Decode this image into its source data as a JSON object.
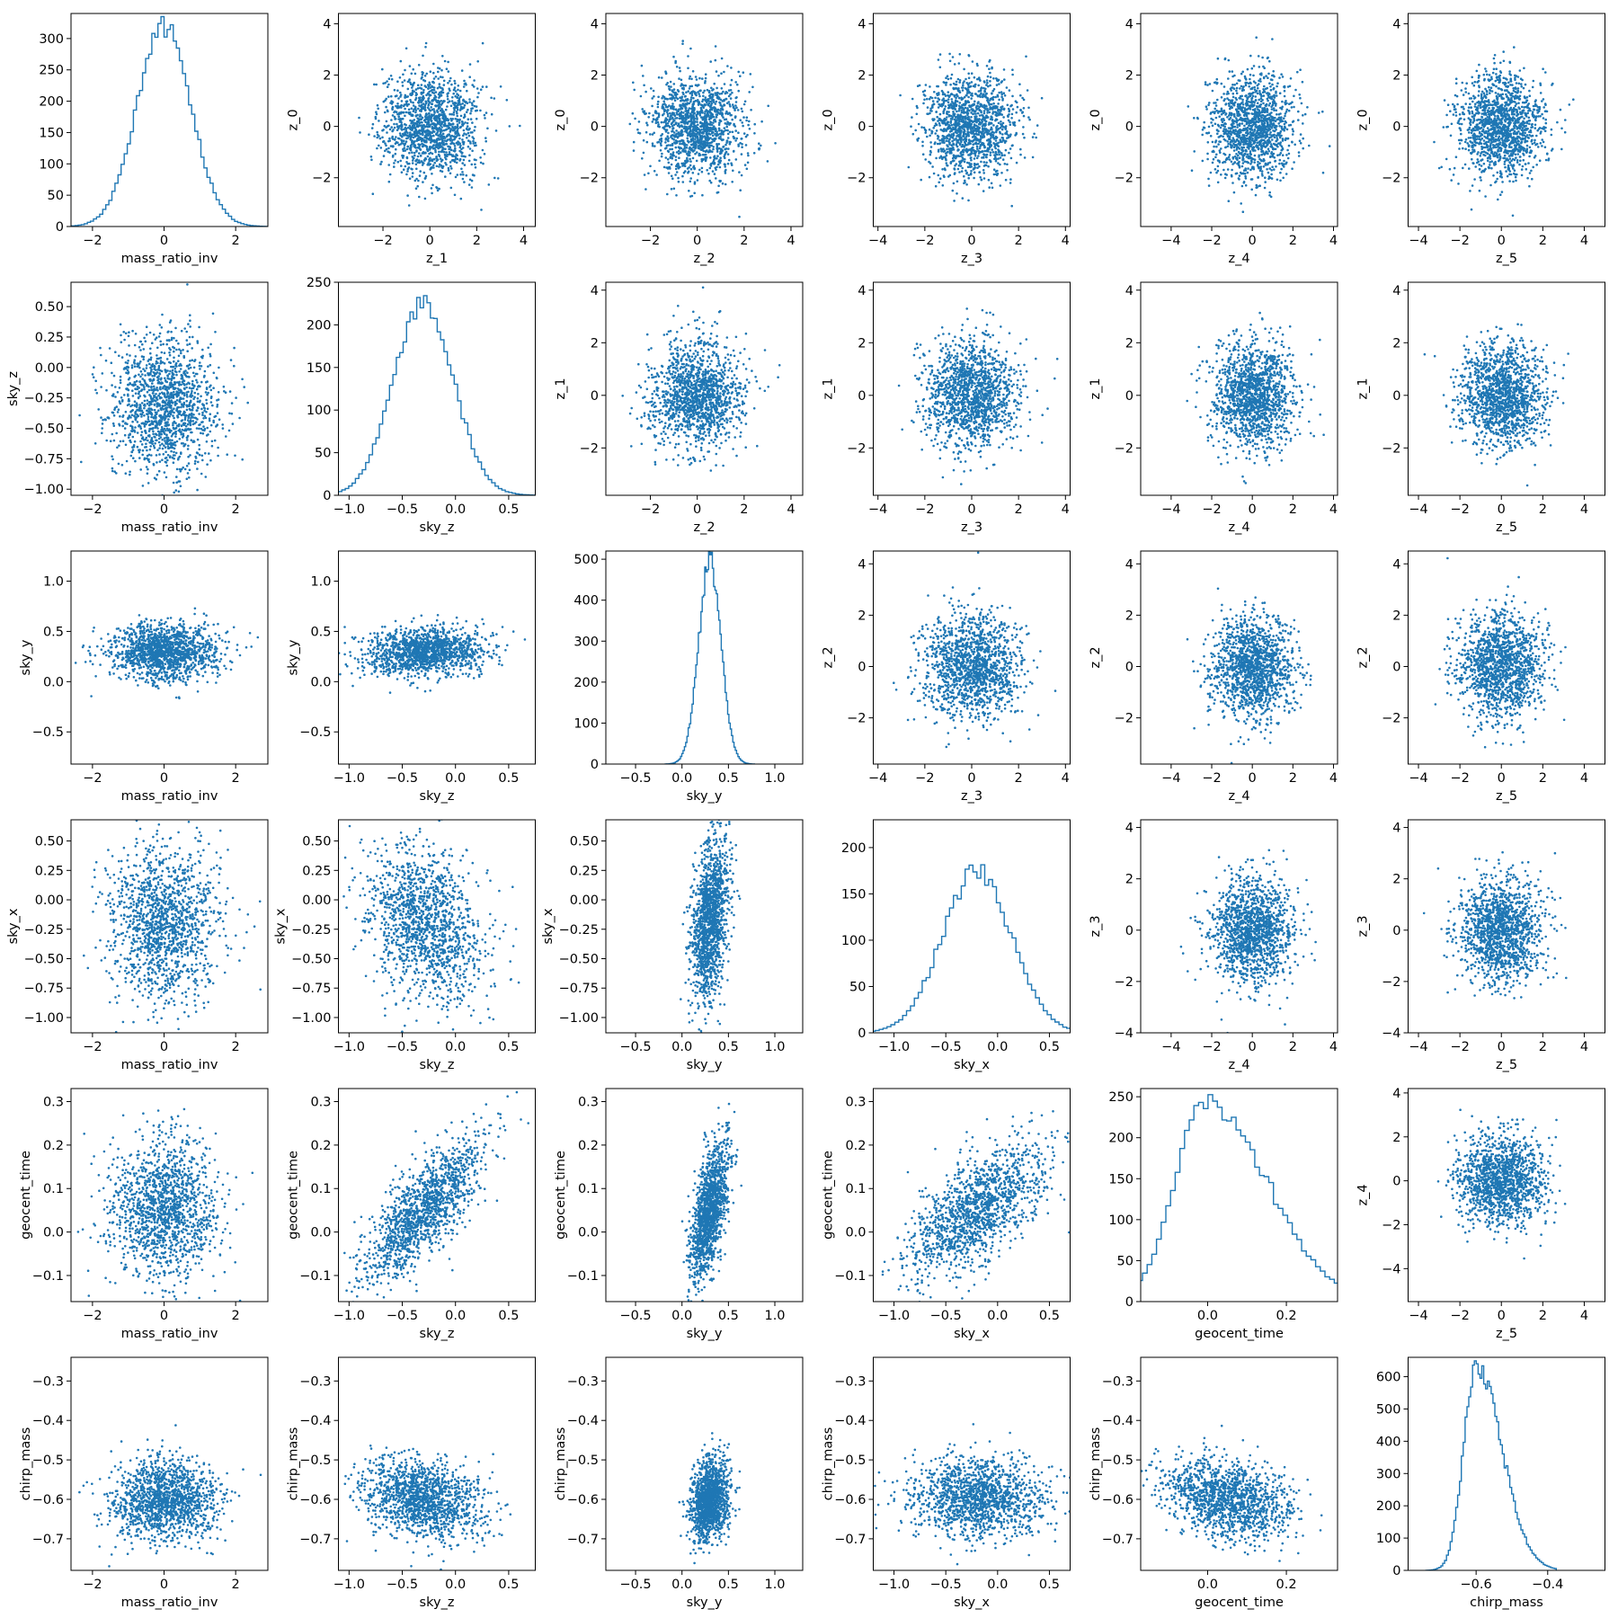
{
  "colors": {
    "series": "#1f77b4",
    "axis": "#000000",
    "background": "#ffffff"
  },
  "chart_data": [
    {
      "row": 0,
      "col": 0,
      "type": "histogram",
      "xlabel": "mass_ratio_inv",
      "ylabel": "",
      "xlim": [
        -2.6,
        2.9
      ],
      "ylim": [
        0,
        340
      ],
      "xticks": [
        -2,
        0,
        2
      ],
      "yticks": [
        0,
        50,
        100,
        150,
        200,
        250,
        300
      ],
      "dist": {
        "center": 0,
        "spread": 0.75,
        "peak": 320,
        "skew": 0
      }
    },
    {
      "row": 0,
      "col": 1,
      "type": "scatter",
      "xlabel": "z_1",
      "ylabel": "z_0",
      "xlim": [
        -3.9,
        4.5
      ],
      "ylim": [
        -3.9,
        4.4
      ],
      "xticks": [
        -2,
        0,
        2,
        4
      ],
      "yticks": [
        -2,
        0,
        2,
        4
      ],
      "dist": {
        "mx": 0,
        "sx": 1,
        "my": 0,
        "sy": 1,
        "rho": 0
      }
    },
    {
      "row": 0,
      "col": 2,
      "type": "scatter",
      "xlabel": "z_2",
      "ylabel": "z_0",
      "xlim": [
        -3.9,
        4.5
      ],
      "ylim": [
        -3.9,
        4.4
      ],
      "xticks": [
        -2,
        0,
        2,
        4
      ],
      "yticks": [
        -2,
        0,
        2,
        4
      ],
      "dist": {
        "mx": 0,
        "sx": 1,
        "my": 0,
        "sy": 1,
        "rho": 0
      }
    },
    {
      "row": 0,
      "col": 3,
      "type": "scatter",
      "xlabel": "z_3",
      "ylabel": "z_0",
      "xlim": [
        -4.2,
        4.2
      ],
      "ylim": [
        -3.9,
        4.4
      ],
      "xticks": [
        -4,
        -2,
        0,
        2,
        4
      ],
      "yticks": [
        -2,
        0,
        2,
        4
      ],
      "dist": {
        "mx": 0,
        "sx": 1,
        "my": 0,
        "sy": 1,
        "rho": 0
      }
    },
    {
      "row": 0,
      "col": 4,
      "type": "scatter",
      "xlabel": "z_4",
      "ylabel": "z_0",
      "xlim": [
        -5.5,
        4.2
      ],
      "ylim": [
        -3.9,
        4.4
      ],
      "xticks": [
        -4,
        -2,
        0,
        2,
        4
      ],
      "yticks": [
        -2,
        0,
        2,
        4
      ],
      "dist": {
        "mx": 0,
        "sx": 1,
        "my": 0,
        "sy": 1,
        "rho": 0
      }
    },
    {
      "row": 0,
      "col": 5,
      "type": "scatter",
      "xlabel": "z_5",
      "ylabel": "z_0",
      "xlim": [
        -4.5,
        5.0
      ],
      "ylim": [
        -3.9,
        4.4
      ],
      "xticks": [
        -4,
        -2,
        0,
        2,
        4
      ],
      "yticks": [
        -2,
        0,
        2,
        4
      ],
      "dist": {
        "mx": 0,
        "sx": 1,
        "my": 0,
        "sy": 1,
        "rho": 0
      }
    },
    {
      "row": 1,
      "col": 0,
      "type": "scatter",
      "xlabel": "mass_ratio_inv",
      "ylabel": "sky_z",
      "xlim": [
        -2.6,
        2.9
      ],
      "ylim": [
        -1.05,
        0.7
      ],
      "xticks": [
        -2,
        0,
        2
      ],
      "yticks": [
        -1.0,
        -0.75,
        -0.5,
        -0.25,
        0.0,
        0.25,
        0.5
      ],
      "ytickfmt": 2,
      "dist": {
        "mx": 0,
        "sx": 0.75,
        "my": -0.3,
        "sy": 0.28,
        "rho": 0
      }
    },
    {
      "row": 1,
      "col": 1,
      "type": "histogram",
      "xlabel": "sky_z",
      "ylabel": "",
      "xlim": [
        -1.1,
        0.75
      ],
      "ylim": [
        0,
        250
      ],
      "xticks": [
        -1.0,
        -0.5,
        0.0,
        0.5
      ],
      "xtickfmt": 1,
      "yticks": [
        0,
        50,
        100,
        150,
        200,
        250
      ],
      "dist": {
        "center": -0.3,
        "spread": 0.28,
        "peak": 225,
        "skew": 0
      }
    },
    {
      "row": 1,
      "col": 2,
      "type": "scatter",
      "xlabel": "z_2",
      "ylabel": "z_1",
      "xlim": [
        -3.9,
        4.5
      ],
      "ylim": [
        -3.8,
        4.3
      ],
      "xticks": [
        -2,
        0,
        2,
        4
      ],
      "yticks": [
        -2,
        0,
        2,
        4
      ],
      "dist": {
        "mx": 0,
        "sx": 1,
        "my": 0,
        "sy": 1,
        "rho": 0
      }
    },
    {
      "row": 1,
      "col": 3,
      "type": "scatter",
      "xlabel": "z_3",
      "ylabel": "z_1",
      "xlim": [
        -4.2,
        4.2
      ],
      "ylim": [
        -3.8,
        4.3
      ],
      "xticks": [
        -4,
        -2,
        0,
        2,
        4
      ],
      "yticks": [
        -2,
        0,
        2,
        4
      ],
      "dist": {
        "mx": 0,
        "sx": 1,
        "my": 0,
        "sy": 1,
        "rho": 0
      }
    },
    {
      "row": 1,
      "col": 4,
      "type": "scatter",
      "xlabel": "z_4",
      "ylabel": "z_1",
      "xlim": [
        -5.5,
        4.2
      ],
      "ylim": [
        -3.8,
        4.3
      ],
      "xticks": [
        -4,
        -2,
        0,
        2,
        4
      ],
      "yticks": [
        -2,
        0,
        2,
        4
      ],
      "dist": {
        "mx": 0,
        "sx": 1,
        "my": 0,
        "sy": 1,
        "rho": 0
      }
    },
    {
      "row": 1,
      "col": 5,
      "type": "scatter",
      "xlabel": "z_5",
      "ylabel": "z_1",
      "xlim": [
        -4.5,
        5.0
      ],
      "ylim": [
        -3.8,
        4.3
      ],
      "xticks": [
        -4,
        -2,
        0,
        2,
        4
      ],
      "yticks": [
        -2,
        0,
        2,
        4
      ],
      "dist": {
        "mx": 0,
        "sx": 1,
        "my": 0,
        "sy": 1,
        "rho": 0
      }
    },
    {
      "row": 2,
      "col": 0,
      "type": "scatter",
      "xlabel": "mass_ratio_inv",
      "ylabel": "sky_y",
      "xlim": [
        -2.6,
        2.9
      ],
      "ylim": [
        -0.82,
        1.3
      ],
      "xticks": [
        -2,
        0,
        2
      ],
      "yticks": [
        -0.5,
        0.0,
        0.5,
        1.0
      ],
      "ytickfmt": 1,
      "dist": {
        "mx": 0,
        "sx": 0.75,
        "my": 0.3,
        "sy": 0.14,
        "rho": 0
      }
    },
    {
      "row": 2,
      "col": 1,
      "type": "scatter",
      "xlabel": "sky_z",
      "ylabel": "sky_y",
      "xlim": [
        -1.1,
        0.75
      ],
      "ylim": [
        -0.82,
        1.3
      ],
      "xticks": [
        -1.0,
        -0.5,
        0.0,
        0.5
      ],
      "xtickfmt": 1,
      "yticks": [
        -0.5,
        0.0,
        0.5,
        1.0
      ],
      "ytickfmt": 1,
      "dist": {
        "mx": -0.3,
        "sx": 0.28,
        "my": 0.3,
        "sy": 0.12,
        "rho": 0.1
      }
    },
    {
      "row": 2,
      "col": 2,
      "type": "histogram",
      "xlabel": "sky_y",
      "ylabel": "",
      "xlim": [
        -0.82,
        1.3
      ],
      "ylim": [
        0,
        520
      ],
      "xticks": [
        -0.5,
        0.0,
        0.5,
        1.0
      ],
      "xtickfmt": 1,
      "yticks": [
        0,
        100,
        200,
        300,
        400,
        500
      ],
      "dist": {
        "center": 0.3,
        "spread": 0.12,
        "peak": 495,
        "skew": 0
      }
    },
    {
      "row": 2,
      "col": 3,
      "type": "scatter",
      "xlabel": "z_3",
      "ylabel": "z_2",
      "xlim": [
        -4.2,
        4.2
      ],
      "ylim": [
        -3.8,
        4.5
      ],
      "xticks": [
        -4,
        -2,
        0,
        2,
        4
      ],
      "yticks": [
        -2,
        0,
        2,
        4
      ],
      "dist": {
        "mx": 0,
        "sx": 1,
        "my": 0,
        "sy": 1,
        "rho": 0
      }
    },
    {
      "row": 2,
      "col": 4,
      "type": "scatter",
      "xlabel": "z_4",
      "ylabel": "z_2",
      "xlim": [
        -5.5,
        4.2
      ],
      "ylim": [
        -3.8,
        4.5
      ],
      "xticks": [
        -4,
        -2,
        0,
        2,
        4
      ],
      "yticks": [
        -2,
        0,
        2,
        4
      ],
      "dist": {
        "mx": 0,
        "sx": 1,
        "my": 0,
        "sy": 1,
        "rho": 0
      }
    },
    {
      "row": 2,
      "col": 5,
      "type": "scatter",
      "xlabel": "z_5",
      "ylabel": "z_2",
      "xlim": [
        -4.5,
        5.0
      ],
      "ylim": [
        -3.8,
        4.5
      ],
      "xticks": [
        -4,
        -2,
        0,
        2,
        4
      ],
      "yticks": [
        -2,
        0,
        2,
        4
      ],
      "dist": {
        "mx": 0,
        "sx": 1,
        "my": 0,
        "sy": 1,
        "rho": 0
      }
    },
    {
      "row": 3,
      "col": 0,
      "type": "scatter",
      "xlabel": "mass_ratio_inv",
      "ylabel": "sky_x",
      "xlim": [
        -2.6,
        2.9
      ],
      "ylim": [
        -1.13,
        0.68
      ],
      "xticks": [
        -2,
        0,
        2
      ],
      "yticks": [
        -1.0,
        -0.75,
        -0.5,
        -0.25,
        0.0,
        0.25,
        0.5
      ],
      "ytickfmt": 2,
      "dist": {
        "mx": 0,
        "sx": 0.75,
        "my": -0.2,
        "sy": 0.33,
        "rho": 0
      }
    },
    {
      "row": 3,
      "col": 1,
      "type": "scatter",
      "xlabel": "sky_z",
      "ylabel": "sky_x",
      "xlim": [
        -1.1,
        0.75
      ],
      "ylim": [
        -1.13,
        0.68
      ],
      "xticks": [
        -1.0,
        -0.5,
        0.0,
        0.5
      ],
      "xtickfmt": 1,
      "yticks": [
        -1.0,
        -0.75,
        -0.5,
        -0.25,
        0.0,
        0.25,
        0.5
      ],
      "ytickfmt": 2,
      "dist": {
        "mx": -0.3,
        "sx": 0.28,
        "my": -0.2,
        "sy": 0.33,
        "rho": -0.3
      }
    },
    {
      "row": 3,
      "col": 2,
      "type": "scatter",
      "xlabel": "sky_y",
      "ylabel": "sky_x",
      "xlim": [
        -0.82,
        1.3
      ],
      "ylim": [
        -1.13,
        0.68
      ],
      "xticks": [
        -0.5,
        0.0,
        0.5,
        1.0
      ],
      "xtickfmt": 1,
      "yticks": [
        -1.0,
        -0.75,
        -0.5,
        -0.25,
        0.0,
        0.25,
        0.5
      ],
      "ytickfmt": 2,
      "dist": {
        "mx": 0.3,
        "sx": 0.1,
        "my": -0.2,
        "sy": 0.33,
        "rho": 0.3
      }
    },
    {
      "row": 3,
      "col": 3,
      "type": "histogram",
      "xlabel": "sky_x",
      "ylabel": "",
      "xlim": [
        -1.2,
        0.7
      ],
      "ylim": [
        0,
        230
      ],
      "xticks": [
        -1.0,
        -0.5,
        0.0,
        0.5
      ],
      "xtickfmt": 1,
      "yticks": [
        0,
        50,
        100,
        150,
        200
      ],
      "dist": {
        "center": -0.2,
        "spread": 0.33,
        "peak": 175,
        "skew": 0
      }
    },
    {
      "row": 3,
      "col": 4,
      "type": "scatter",
      "xlabel": "z_4",
      "ylabel": "z_3",
      "xlim": [
        -5.5,
        4.2
      ],
      "ylim": [
        -4.0,
        4.3
      ],
      "xticks": [
        -4,
        -2,
        0,
        2,
        4
      ],
      "yticks": [
        -4,
        -2,
        0,
        2,
        4
      ],
      "dist": {
        "mx": 0,
        "sx": 1,
        "my": 0,
        "sy": 1,
        "rho": 0
      }
    },
    {
      "row": 3,
      "col": 5,
      "type": "scatter",
      "xlabel": "z_5",
      "ylabel": "z_3",
      "xlim": [
        -4.5,
        5.0
      ],
      "ylim": [
        -4.0,
        4.3
      ],
      "xticks": [
        -4,
        -2,
        0,
        2,
        4
      ],
      "yticks": [
        -4,
        -2,
        0,
        2,
        4
      ],
      "dist": {
        "mx": 0,
        "sx": 1,
        "my": 0,
        "sy": 1,
        "rho": 0
      }
    },
    {
      "row": 4,
      "col": 0,
      "type": "scatter",
      "xlabel": "mass_ratio_inv",
      "ylabel": "geocent_time",
      "xlim": [
        -2.6,
        2.9
      ],
      "ylim": [
        -0.16,
        0.33
      ],
      "xticks": [
        -2,
        0,
        2
      ],
      "yticks": [
        -0.1,
        0.0,
        0.1,
        0.2,
        0.3
      ],
      "ytickfmt": 1,
      "dist": {
        "mx": 0,
        "sx": 0.75,
        "my": 0.05,
        "sy": 0.08,
        "rho": 0
      }
    },
    {
      "row": 4,
      "col": 1,
      "type": "scatter",
      "xlabel": "sky_z",
      "ylabel": "geocent_time",
      "xlim": [
        -1.1,
        0.75
      ],
      "ylim": [
        -0.16,
        0.33
      ],
      "xticks": [
        -1.0,
        -0.5,
        0.0,
        0.5
      ],
      "xtickfmt": 1,
      "yticks": [
        -0.1,
        0.0,
        0.1,
        0.2,
        0.3
      ],
      "ytickfmt": 1,
      "dist": {
        "mx": -0.3,
        "sx": 0.28,
        "my": 0.05,
        "sy": 0.08,
        "rho": 0.75
      }
    },
    {
      "row": 4,
      "col": 2,
      "type": "scatter",
      "xlabel": "sky_y",
      "ylabel": "geocent_time",
      "xlim": [
        -0.82,
        1.3
      ],
      "ylim": [
        -0.16,
        0.33
      ],
      "xticks": [
        -0.5,
        0.0,
        0.5,
        1.0
      ],
      "xtickfmt": 1,
      "yticks": [
        -0.1,
        0.0,
        0.1,
        0.2,
        0.3
      ],
      "ytickfmt": 1,
      "dist": {
        "mx": 0.3,
        "sx": 0.1,
        "my": 0.05,
        "sy": 0.08,
        "rho": 0.6
      }
    },
    {
      "row": 4,
      "col": 3,
      "type": "scatter",
      "xlabel": "sky_x",
      "ylabel": "geocent_time",
      "xlim": [
        -1.2,
        0.7
      ],
      "ylim": [
        -0.16,
        0.33
      ],
      "xticks": [
        -1.0,
        -0.5,
        0.0,
        0.5
      ],
      "xtickfmt": 1,
      "yticks": [
        -0.1,
        0.0,
        0.1,
        0.2,
        0.3
      ],
      "ytickfmt": 1,
      "dist": {
        "mx": -0.2,
        "sx": 0.33,
        "my": 0.05,
        "sy": 0.08,
        "rho": 0.65
      }
    },
    {
      "row": 4,
      "col": 4,
      "type": "histogram",
      "xlabel": "geocent_time",
      "ylabel": "",
      "xlim": [
        -0.17,
        0.33
      ],
      "ylim": [
        0,
        260
      ],
      "xticks": [
        0.0,
        0.2
      ],
      "xtickfmt": 1,
      "yticks": [
        0,
        50,
        100,
        150,
        200,
        250
      ],
      "dist": {
        "center": 0.0,
        "spread": 0.08,
        "peak": 245,
        "skew": 2.5
      }
    },
    {
      "row": 4,
      "col": 5,
      "type": "scatter",
      "xlabel": "z_5",
      "ylabel": "z_4",
      "xlim": [
        -4.5,
        5.0
      ],
      "ylim": [
        -5.5,
        4.2
      ],
      "xticks": [
        -4,
        -2,
        0,
        2,
        4
      ],
      "yticks": [
        -4,
        -2,
        0,
        2,
        4
      ],
      "dist": {
        "mx": 0,
        "sx": 1,
        "my": 0,
        "sy": 1,
        "rho": 0
      }
    },
    {
      "row": 5,
      "col": 0,
      "type": "scatter",
      "xlabel": "mass_ratio_inv",
      "ylabel": "chirp_mass",
      "xlim": [
        -2.6,
        2.9
      ],
      "ylim": [
        -0.78,
        -0.24
      ],
      "xticks": [
        -2,
        0,
        2
      ],
      "yticks": [
        -0.7,
        -0.6,
        -0.5,
        -0.4,
        -0.3
      ],
      "ytickfmt": 1,
      "dist": {
        "mx": 0,
        "sx": 0.75,
        "my": -0.6,
        "sy": 0.05,
        "rho": 0
      }
    },
    {
      "row": 5,
      "col": 1,
      "type": "scatter",
      "xlabel": "sky_z",
      "ylabel": "chirp_mass",
      "xlim": [
        -1.1,
        0.75
      ],
      "ylim": [
        -0.78,
        -0.24
      ],
      "xticks": [
        -1.0,
        -0.5,
        0.0,
        0.5
      ],
      "xtickfmt": 1,
      "yticks": [
        -0.7,
        -0.6,
        -0.5,
        -0.4,
        -0.3
      ],
      "ytickfmt": 1,
      "dist": {
        "mx": -0.3,
        "sx": 0.28,
        "my": -0.6,
        "sy": 0.05,
        "rho": -0.25
      }
    },
    {
      "row": 5,
      "col": 2,
      "type": "scatter",
      "xlabel": "sky_y",
      "ylabel": "chirp_mass",
      "xlim": [
        -0.82,
        1.3
      ],
      "ylim": [
        -0.78,
        -0.24
      ],
      "xticks": [
        -0.5,
        0.0,
        0.5,
        1.0
      ],
      "xtickfmt": 1,
      "yticks": [
        -0.7,
        -0.6,
        -0.5,
        -0.4,
        -0.3
      ],
      "ytickfmt": 1,
      "dist": {
        "mx": 0.3,
        "sx": 0.1,
        "my": -0.6,
        "sy": 0.05,
        "rho": 0.2
      }
    },
    {
      "row": 5,
      "col": 3,
      "type": "scatter",
      "xlabel": "sky_x",
      "ylabel": "chirp_mass",
      "xlim": [
        -1.2,
        0.7
      ],
      "ylim": [
        -0.78,
        -0.24
      ],
      "xticks": [
        -1.0,
        -0.5,
        0.0,
        0.5
      ],
      "xtickfmt": 1,
      "yticks": [
        -0.7,
        -0.6,
        -0.5,
        -0.4,
        -0.3
      ],
      "ytickfmt": 1,
      "dist": {
        "mx": -0.2,
        "sx": 0.33,
        "my": -0.6,
        "sy": 0.05,
        "rho": 0
      }
    },
    {
      "row": 5,
      "col": 4,
      "type": "scatter",
      "xlabel": "geocent_time",
      "ylabel": "chirp_mass",
      "xlim": [
        -0.17,
        0.33
      ],
      "ylim": [
        -0.78,
        -0.24
      ],
      "xticks": [
        0.0,
        0.2
      ],
      "xtickfmt": 1,
      "yticks": [
        -0.7,
        -0.6,
        -0.5,
        -0.4,
        -0.3
      ],
      "ytickfmt": 1,
      "dist": {
        "mx": 0.05,
        "sx": 0.08,
        "my": -0.6,
        "sy": 0.05,
        "rho": -0.3
      }
    },
    {
      "row": 5,
      "col": 5,
      "type": "histogram",
      "xlabel": "chirp_mass",
      "ylabel": "",
      "xlim": [
        -0.79,
        -0.24
      ],
      "ylim": [
        0,
        660
      ],
      "xticks": [
        -0.6,
        -0.4
      ],
      "xtickfmt": 1,
      "yticks": [
        0,
        100,
        200,
        300,
        400,
        500,
        600
      ],
      "dist": {
        "center": -0.6,
        "spread": 0.035,
        "peak": 630,
        "skew": 3
      }
    }
  ]
}
